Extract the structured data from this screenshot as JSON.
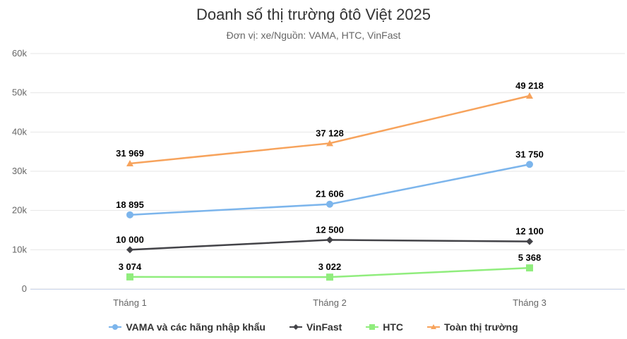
{
  "chart_data": {
    "type": "line",
    "title": "Doanh số thị trường ôtô Việt 2025",
    "subtitle": "Đơn vị: xe/Nguồn: VAMA, HTC, VinFast",
    "categories": [
      "Tháng 1",
      "Tháng 2",
      "Tháng 3"
    ],
    "ylim": [
      0,
      60000
    ],
    "yticks": [
      0,
      10000,
      20000,
      30000,
      40000,
      50000,
      60000
    ],
    "ytick_labels": [
      "0",
      "10k",
      "20k",
      "30k",
      "40k",
      "50k",
      "60k"
    ],
    "grid": true,
    "legend_position": "bottom",
    "series": [
      {
        "name": "VAMA và các hãng nhập khẩu",
        "values": [
          18895,
          21606,
          31750
        ],
        "labels": [
          "18 895",
          "21 606",
          "31 750"
        ],
        "color": "#7cb5ec",
        "marker": "circle"
      },
      {
        "name": "VinFast",
        "values": [
          10000,
          12500,
          12100
        ],
        "labels": [
          "10 000",
          "12 500",
          "12 100"
        ],
        "color": "#434348",
        "marker": "diamond"
      },
      {
        "name": "HTC",
        "values": [
          3074,
          3022,
          5368
        ],
        "labels": [
          "3 074",
          "3 022",
          "5 368"
        ],
        "color": "#90ed7d",
        "marker": "square"
      },
      {
        "name": "Toàn thị trường",
        "values": [
          31969,
          37128,
          49218
        ],
        "labels": [
          "31 969",
          "37 128",
          "49 218"
        ],
        "color": "#f7a35c",
        "marker": "triangle"
      }
    ]
  }
}
